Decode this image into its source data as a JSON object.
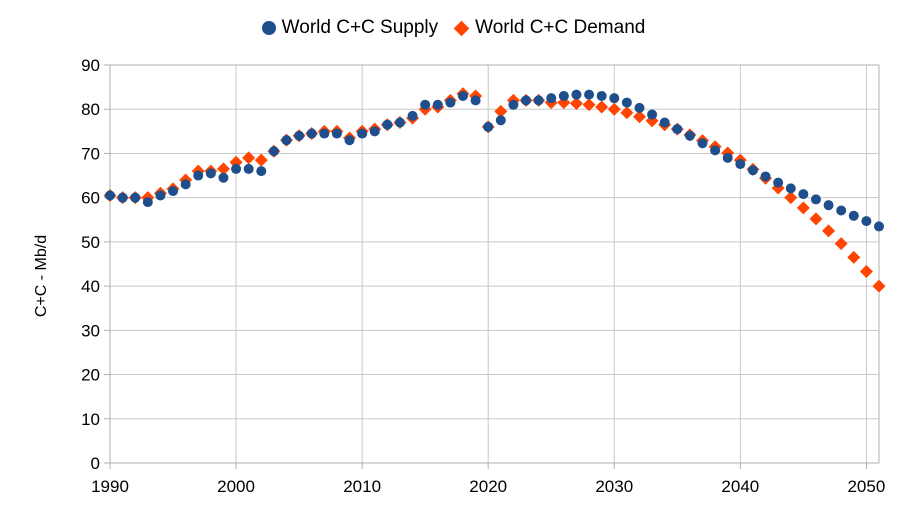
{
  "chart_data": {
    "type": "scatter",
    "title": "",
    "xlabel": "",
    "ylabel": "C+C - Mb/d",
    "xlim": [
      1990,
      2051
    ],
    "ylim": [
      0,
      90
    ],
    "x_ticks": [
      1990,
      2000,
      2010,
      2020,
      2030,
      2040,
      2050
    ],
    "y_ticks": [
      0,
      10,
      20,
      30,
      40,
      50,
      60,
      70,
      80,
      90
    ],
    "grid": true,
    "legend_position": "top",
    "x": [
      1990,
      1991,
      1992,
      1993,
      1994,
      1995,
      1996,
      1997,
      1998,
      1999,
      2000,
      2001,
      2002,
      2003,
      2004,
      2005,
      2006,
      2007,
      2008,
      2009,
      2010,
      2011,
      2012,
      2013,
      2014,
      2015,
      2016,
      2017,
      2018,
      2019,
      2020,
      2021,
      2022,
      2023,
      2024,
      2025,
      2026,
      2027,
      2028,
      2029,
      2030,
      2031,
      2032,
      2033,
      2034,
      2035,
      2036,
      2037,
      2038,
      2039,
      2040,
      2041,
      2042,
      2043,
      2044,
      2045,
      2046,
      2047,
      2048,
      2049,
      2050,
      2051
    ],
    "series": [
      {
        "name": "World C+C Supply",
        "color": "#1f4e8c",
        "marker": "circle",
        "values": [
          60.5,
          60.0,
          60.0,
          59.0,
          60.5,
          61.5,
          63.0,
          65.0,
          65.5,
          64.5,
          66.5,
          66.5,
          66.0,
          70.5,
          73.0,
          74.0,
          74.5,
          74.5,
          74.5,
          73.0,
          74.5,
          75.0,
          76.5,
          77.0,
          78.5,
          81.0,
          81.0,
          81.5,
          83.0,
          82.0,
          76.0,
          77.5,
          81.0,
          82.0,
          82.0,
          82.5,
          83.0,
          83.3,
          83.3,
          83.0,
          82.5,
          81.5,
          80.3,
          78.8,
          77.0,
          75.5,
          74.0,
          72.3,
          70.7,
          69.0,
          67.6,
          66.2,
          64.8,
          63.4,
          62.1,
          60.8,
          59.6,
          58.3,
          57.1,
          55.9,
          54.7,
          53.5
        ]
      },
      {
        "name": "World C+C Demand",
        "color": "#ff4500",
        "marker": "diamond",
        "values": [
          60.5,
          60.0,
          60.0,
          60.0,
          61.0,
          62.0,
          64.0,
          66.0,
          66.0,
          66.5,
          68.0,
          69.0,
          68.5,
          70.5,
          73.0,
          74.0,
          74.5,
          75.0,
          75.0,
          73.5,
          75.0,
          75.5,
          76.5,
          77.0,
          78.0,
          80.0,
          80.5,
          82.0,
          83.5,
          83.0,
          76.0,
          79.5,
          82.0,
          82.0,
          82.0,
          81.5,
          81.5,
          81.3,
          81.0,
          80.5,
          80.0,
          79.2,
          78.3,
          77.4,
          76.5,
          75.5,
          74.2,
          72.9,
          71.5,
          70.1,
          68.5,
          66.4,
          64.4,
          62.2,
          60.0,
          57.7,
          55.2,
          52.5,
          49.6,
          46.5,
          43.3,
          40.0
        ]
      }
    ]
  }
}
